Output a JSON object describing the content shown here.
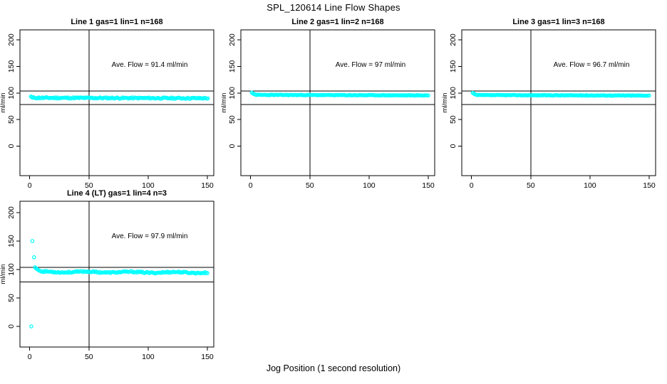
{
  "figure": {
    "title": "SPL_120614  Line Flow Shapes",
    "xlabel": "Jog Position (1 second resolution)",
    "background_color": "#ffffff",
    "point_color": "#00FFFF",
    "axis_color": "#000000",
    "text_color": "#000000"
  },
  "chart_data": [
    {
      "type": "scatter",
      "title": "Line 1 gas=1 lin=1 n=168",
      "annotation": "Ave. Flow =  91.4  ml/min",
      "ave_flow": 91.4,
      "n": 168,
      "ylabel": "ml/min",
      "x_ticks": [
        0,
        50,
        100,
        150
      ],
      "y_ticks": [
        0,
        50,
        100,
        150,
        200
      ],
      "xlim": [
        0,
        155
      ],
      "ylim": [
        -20,
        220
      ],
      "ref_lines_y": [
        104,
        78
      ],
      "ref_line_x": 50,
      "grid": false,
      "points": {
        "transient": [
          [
            1,
            93.4
          ],
          [
            1.8,
            92.0
          ]
        ],
        "band": {
          "x_start": 2.5,
          "x_end": 150,
          "step": 1,
          "y_start": 90.9,
          "y_end": 90.1,
          "jitter": 1.2,
          "wiggle": 0,
          "seed": 11
        },
        "outliers": []
      }
    },
    {
      "type": "scatter",
      "title": "Line 2 gas=1 lin=2 n=168",
      "annotation": "Ave. Flow =  97  ml/min",
      "ave_flow": 97,
      "n": 168,
      "ylabel": "ml/min",
      "x_ticks": [
        0,
        50,
        100,
        150
      ],
      "y_ticks": [
        0,
        50,
        100,
        150,
        200
      ],
      "xlim": [
        0,
        155
      ],
      "ylim": [
        -20,
        220
      ],
      "ref_lines_y": [
        104,
        78
      ],
      "ref_line_x": 50,
      "grid": false,
      "points": {
        "transient": [
          [
            1,
            100.8
          ],
          [
            1.8,
            99.3
          ],
          [
            2.6,
            98.3
          ],
          [
            3.4,
            97.5
          ],
          [
            4.2,
            96.9
          ]
        ],
        "band": {
          "x_start": 5,
          "x_end": 150,
          "step": 1,
          "y_start": 96.4,
          "y_end": 95.4,
          "jitter": 0.55,
          "wiggle": 0,
          "seed": 23
        },
        "outliers": []
      }
    },
    {
      "type": "scatter",
      "title": "Line 3 gas=1 lin=3 n=168",
      "annotation": "Ave. Flow =  96.7  ml/min",
      "ave_flow": 96.7,
      "n": 168,
      "ylabel": "ml/min",
      "x_ticks": [
        0,
        50,
        100,
        150
      ],
      "y_ticks": [
        0,
        50,
        100,
        150,
        200
      ],
      "xlim": [
        0,
        155
      ],
      "ylim": [
        -20,
        220
      ],
      "ref_lines_y": [
        104,
        78
      ],
      "ref_line_x": 50,
      "grid": false,
      "points": {
        "transient": [
          [
            1,
            100.3
          ],
          [
            1.8,
            98.9
          ],
          [
            2.6,
            97.9
          ],
          [
            3.4,
            97.1
          ],
          [
            4.2,
            96.5
          ]
        ],
        "band": {
          "x_start": 5,
          "x_end": 150,
          "step": 1,
          "y_start": 96.0,
          "y_end": 95.1,
          "jitter": 0.55,
          "wiggle": 0,
          "seed": 37
        },
        "outliers": []
      }
    },
    {
      "type": "scatter",
      "title": "Line 4 (LT) gas=1 lin=4 n=3",
      "annotation": "Ave. Flow =  97.9  ml/min",
      "ave_flow": 97.9,
      "n": 3,
      "ylabel": "ml/min",
      "x_ticks": [
        0,
        50,
        100,
        150
      ],
      "y_ticks": [
        0,
        50,
        100,
        150,
        200
      ],
      "xlim": [
        0,
        155
      ],
      "ylim": [
        -20,
        220
      ],
      "ref_lines_y": [
        104,
        78
      ],
      "ref_line_x": 50,
      "grid": false,
      "points": {
        "transient": [
          [
            4.5,
            104
          ],
          [
            5.2,
            102.3
          ],
          [
            6,
            101
          ],
          [
            6.8,
            99.8
          ],
          [
            7.6,
            98.7
          ],
          [
            8.4,
            97.8
          ],
          [
            9.2,
            97.1
          ]
        ],
        "band": {
          "x_start": 10,
          "x_end": 150,
          "step": 1,
          "y_start": 96.0,
          "y_end": 94.6,
          "jitter": 1.1,
          "wiggle": 0.8,
          "seed": 53
        },
        "outliers": [
          [
            1.3,
            0
          ],
          [
            2.2,
            150
          ],
          [
            3.7,
            121.5
          ]
        ]
      }
    }
  ]
}
